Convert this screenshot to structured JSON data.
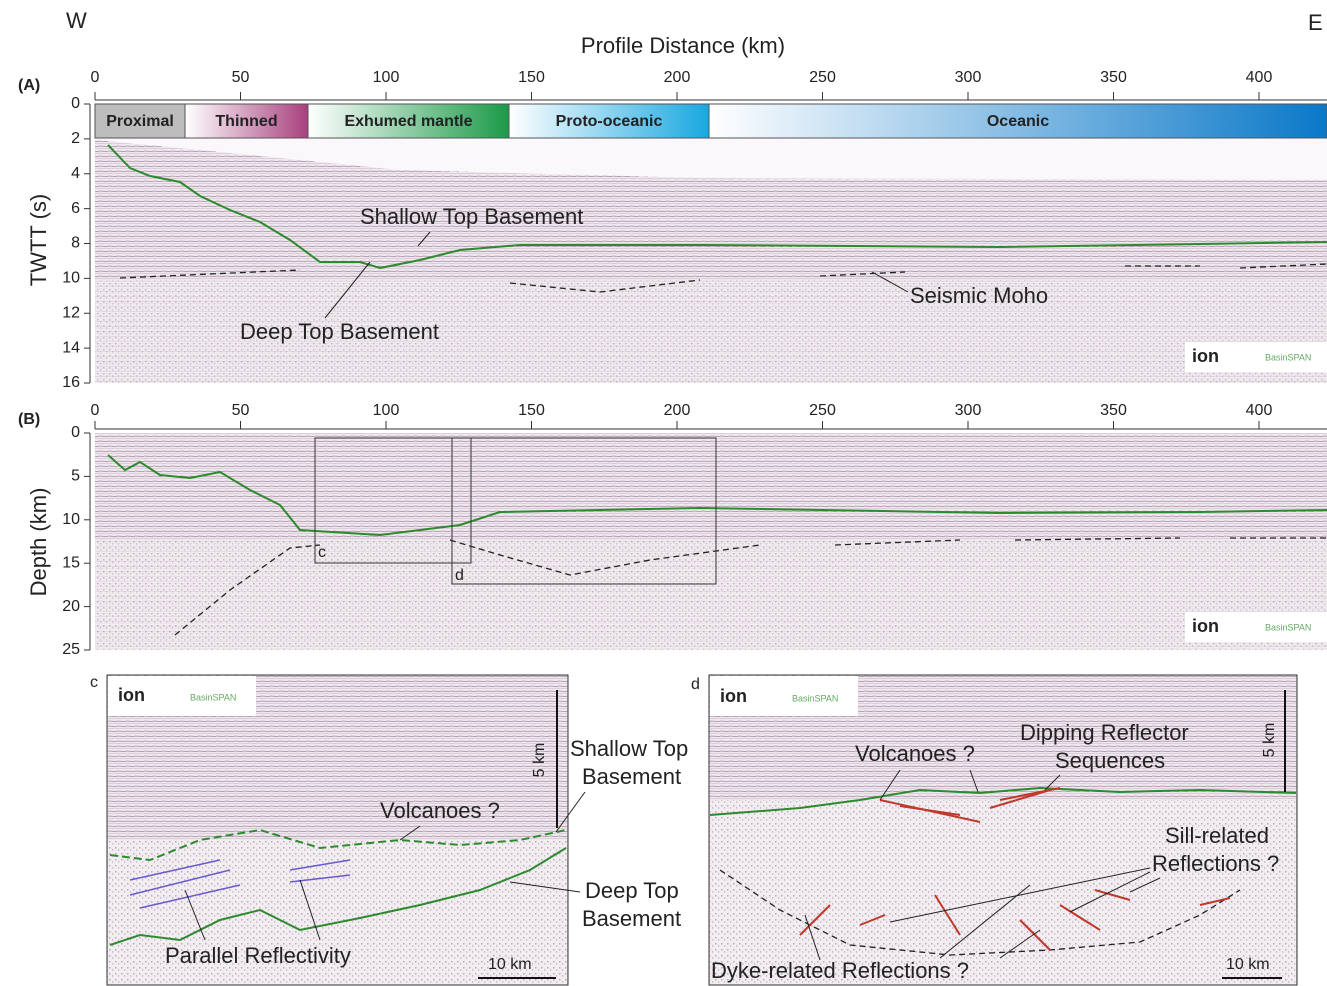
{
  "orientation": {
    "west": "W",
    "east": "E"
  },
  "x_axis_label": "Profile Distance (km)",
  "panel_a": {
    "label": "(A)",
    "y_axis_label": "TWTT (s)",
    "xticks": [
      0,
      50,
      100,
      150,
      200,
      250,
      300,
      350,
      400
    ],
    "yticks": [
      0,
      2,
      4,
      6,
      8,
      10,
      12,
      14,
      16
    ],
    "domains": [
      "Proximal",
      "Thinned",
      "Exhumed mantle",
      "Proto-oceanic",
      "Oceanic"
    ],
    "annotations": {
      "shallow": "Shallow Top Basement",
      "deep": "Deep Top Basement",
      "moho": "Seismic Moho"
    },
    "logo": "ion",
    "logo_sub": "BasinSPAN"
  },
  "panel_b": {
    "label": "(B)",
    "y_axis_label": "Depth (km)",
    "xticks": [
      0,
      50,
      100,
      150,
      200,
      250,
      300,
      350,
      400
    ],
    "yticks": [
      0,
      5,
      10,
      15,
      20,
      25
    ],
    "box_c": "c",
    "box_d": "d",
    "logo": "ion",
    "logo_sub": "BasinSPAN"
  },
  "inset_c": {
    "label": "c",
    "logo": "ion",
    "logo_sub": "BasinSPAN",
    "vscale": "5 km",
    "hscale": "10 km",
    "shallow": [
      "Shallow Top",
      "Basement"
    ],
    "volcanoes": "Volcanoes ?",
    "deep": [
      "Deep Top",
      "Basement"
    ],
    "parallel": "Parallel Reflectivity"
  },
  "inset_d": {
    "label": "d",
    "logo": "ion",
    "logo_sub": "BasinSPAN",
    "vscale": "5 km",
    "hscale": "10 km",
    "volcanoes": "Volcanoes ?",
    "dipping": [
      "Dipping Reflector",
      "Sequences"
    ],
    "sill": [
      "Sill-related",
      "Reflections ?"
    ],
    "dyke": "Dyke-related Reflections ?"
  }
}
